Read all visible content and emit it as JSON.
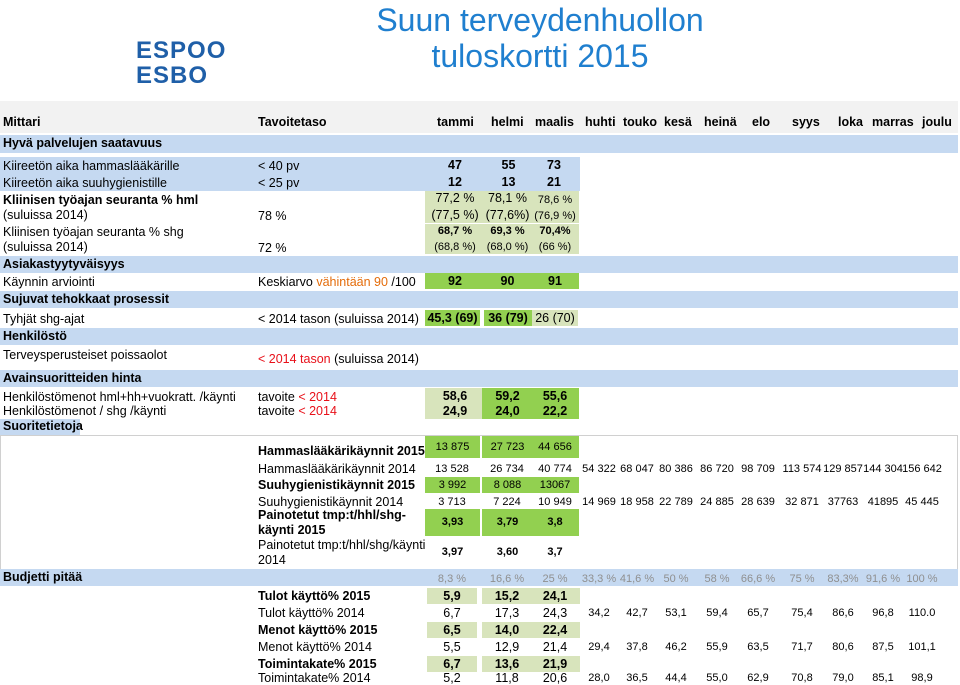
{
  "logo": {
    "line1": "ESPOO",
    "line2": "ESBO"
  },
  "title": {
    "line1": "Suun terveydenhuollon",
    "line2": "tuloskortti 2015"
  },
  "header": {
    "mittari": "Mittari",
    "tavoitetaso": "Tavoitetaso",
    "months": [
      "tammi",
      "helmi",
      "maalis",
      "huhti",
      "touko",
      "kesä",
      "heinä",
      "elo",
      "syys",
      "loka",
      "marras",
      "joulu"
    ]
  },
  "sections": {
    "s1": "Hyvä palvelujen saatavuus",
    "s2": "Asiakastyytyväisyys",
    "s3": "Sujuvat tehokkaat prosessit",
    "s4": "Henkilöstö",
    "s5": "Avainsuoritteiden hinta",
    "s6": "Suoritetietoja",
    "s7": "Budjetti pitää"
  },
  "rows": {
    "r1": {
      "label": "Kiireetön aika hammaslääkärille",
      "target": "< 40 pv",
      "v": [
        "47",
        "55",
        "73"
      ]
    },
    "r2": {
      "label": "Kiireetön aika suuhygienistille",
      "target": "< 25 pv",
      "v": [
        "12",
        "13",
        "21"
      ]
    },
    "r3": {
      "label1": "Kliinisen työajan seuranta % hml",
      "label2": "(suluissa 2014)",
      "target": "78 %",
      "v1": [
        "77,2 %",
        "78,1 %",
        "78,6 %"
      ],
      "v2": [
        "(77,5 %)",
        "(77,6%)",
        "(76,9 %)"
      ]
    },
    "r4": {
      "label1": "Kliinisen työajan seuranta % shg",
      "label2": "(suluissa 2014)",
      "target": "72 %",
      "v1": [
        "68,7 %",
        "69,3 %",
        "70,4%"
      ],
      "v2": [
        "(68,8 %)",
        "(68,0 %)",
        "(66 %)"
      ]
    },
    "r5": {
      "label": "Käynnin arviointi",
      "target_a": "Keskiarvo ",
      "target_b": "vähintään 90",
      "target_c": " /100",
      "v": [
        "92",
        "90",
        "91"
      ]
    },
    "r6": {
      "label": "Tyhjät shg-ajat",
      "target_a": "< 2014 tason",
      "target_b": " (suluissa 2014)",
      "v": [
        "45,3 (69)",
        "36 (79)",
        "26 (70)"
      ]
    },
    "r7": {
      "label": "Terveysperusteiset poissaolot",
      "target_a": "< 2014 tason",
      "target_b": " (suluissa 2014)"
    },
    "r8": {
      "label": "Henkilöstömenot hml+hh+vuokratt. /käynti",
      "target_a": "tavoite ",
      "target_b": "< 2014",
      "v": [
        "58,6",
        "59,2",
        "55,6"
      ]
    },
    "r9": {
      "label": "Henkilöstömenot / shg /käynti",
      "target_a": "tavoite ",
      "target_b": "< 2014",
      "v": [
        "24,9",
        "24,0",
        "22,2"
      ]
    }
  },
  "suorite": {
    "hk2015": {
      "label": "Hammaslääkärikäynnit 2015",
      "v": [
        "13 875",
        "27 723",
        "44 656"
      ]
    },
    "hk2014": {
      "label": "Hammaslääkärikäynnit 2014",
      "v": [
        "13 528",
        "26 734",
        "40 774",
        "54 322",
        "68 047",
        "80 386",
        "86 720",
        "98 709",
        "113 574",
        "129 857",
        "144 304",
        "156 642"
      ]
    },
    "sh2015": {
      "label": "Suuhygienistikäynnit 2015",
      "v": [
        "3 992",
        "8 088",
        "13067"
      ]
    },
    "sh2014": {
      "label": "Suuhygienistikäynnit 2014",
      "v": [
        "3 713",
        "7 224",
        "10 949",
        "14 969",
        "18 958",
        "22 789",
        "24 885",
        "28 639",
        "32 871",
        "37763",
        "41895",
        "45 445"
      ]
    },
    "pt2015": {
      "label1": "Painotetut tmp:t/hhl/shg-",
      "label2": "käynti 2015",
      "v": [
        "3,93",
        "3,79",
        "3,8"
      ]
    },
    "pt2014": {
      "label1": "Painotetut tmp:t/hhl/shg/käynti",
      "label2": "2014",
      "v": [
        "3,97",
        "3,60",
        "3,7"
      ]
    }
  },
  "budjetti": {
    "pct": [
      "8,3 %",
      "16,6 %",
      "25 %",
      "33,3 %",
      "41,6 %",
      "50 %",
      "58 %",
      "66,6 %",
      "75 %",
      "83,3%",
      "91,6 %",
      "100 %"
    ],
    "tk2015": {
      "label": "Tulot käyttö% 2015",
      "v": [
        "5,9",
        "15,2",
        "24,1"
      ]
    },
    "tk2014": {
      "label": "Tulot käyttö% 2014",
      "v": [
        "6,7",
        "17,3",
        "24,3",
        "34,2",
        "42,7",
        "53,1",
        "59,4",
        "65,7",
        "75,4",
        "86,6",
        "96,8",
        "110.0"
      ]
    },
    "mk2015": {
      "label": "Menot käyttö% 2015",
      "v": [
        "6,5",
        "14,0",
        "22,4"
      ]
    },
    "mk2014": {
      "label": "Menot käyttö% 2014",
      "v": [
        "5,5",
        "12,9",
        "21,4",
        "29,4",
        "37,8",
        "46,2",
        "55,9",
        "63,5",
        "71,7",
        "80,6",
        "87,5",
        "101,1"
      ]
    },
    "ti2015": {
      "label": "Toimintakate% 2015",
      "v": [
        "6,7",
        "13,6",
        "21,9"
      ]
    },
    "ti2014": {
      "label": "Toimintakate% 2014",
      "v": [
        "5,2",
        "11,8",
        "20,6",
        "28,0",
        "36,5",
        "44,4",
        "55,0",
        "62,9",
        "70,8",
        "79,0",
        "85,1",
        "98,9"
      ]
    }
  },
  "colors": {
    "section": "#c5d9f1",
    "good": "#92d050",
    "ok": "#d8e4bc",
    "title": "#1f7fcf",
    "logo": "#1f5fa8",
    "warn": "#e46c0a"
  }
}
